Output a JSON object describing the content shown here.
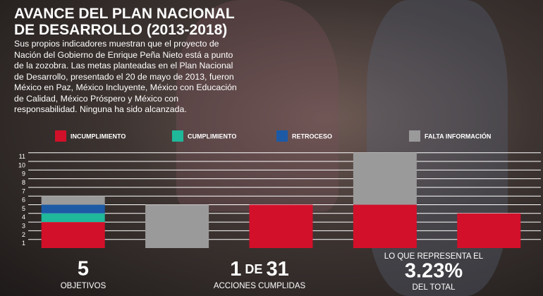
{
  "chart_data": {
    "type": "stacked_bar",
    "title": "AVANCE DEL PLAN NACIONAL DE DESARROLLO (2013-2018)",
    "subtitle": "Sus propios indicadores muestran que el proyecto de Nación del Gobierno de Enrique Peña Nieto está a punto de la zozobra. Las metas planteadas en el Plan Nacional de Desarrollo, presentado el 20 de mayo de 2013, fueron México en Paz, México Incluyente, México con Educación de Calidad, México Próspero y México con responsabilidad. Ninguna ha sido alcanzada.",
    "categories": [
      null,
      null,
      null,
      null,
      null
    ],
    "series": [
      {
        "name": "INCUMPLIMIENTO",
        "color": "#d2102a",
        "values": [
          3,
          null,
          5,
          5,
          4
        ]
      },
      {
        "name": "CUMPLIMIENTO",
        "color": "#1fb89a",
        "values": [
          1,
          null,
          null,
          null,
          null
        ]
      },
      {
        "name": "RETROCESO",
        "color": "#1c5aa6",
        "values": [
          1,
          null,
          null,
          null,
          null
        ]
      },
      {
        "name": "FALTA INFORMACIÓN",
        "color": "#9a9a9a",
        "values": [
          1,
          5,
          null,
          6,
          null
        ]
      }
    ],
    "ylim": [
      0,
      11
    ],
    "yticks": [
      1,
      2,
      3,
      4,
      5,
      6,
      7,
      8,
      9,
      10,
      11
    ],
    "grid": true
  },
  "stats": [
    {
      "big": "5",
      "label": "OBJETIVOS"
    },
    {
      "big_parts": [
        "1",
        "DE",
        "31"
      ],
      "label": "ACCIONES CUMPLIDAS"
    },
    {
      "intro": "LO QUE REPRESENTA EL",
      "big": "3.23%",
      "label": "DEL TOTAL"
    }
  ]
}
